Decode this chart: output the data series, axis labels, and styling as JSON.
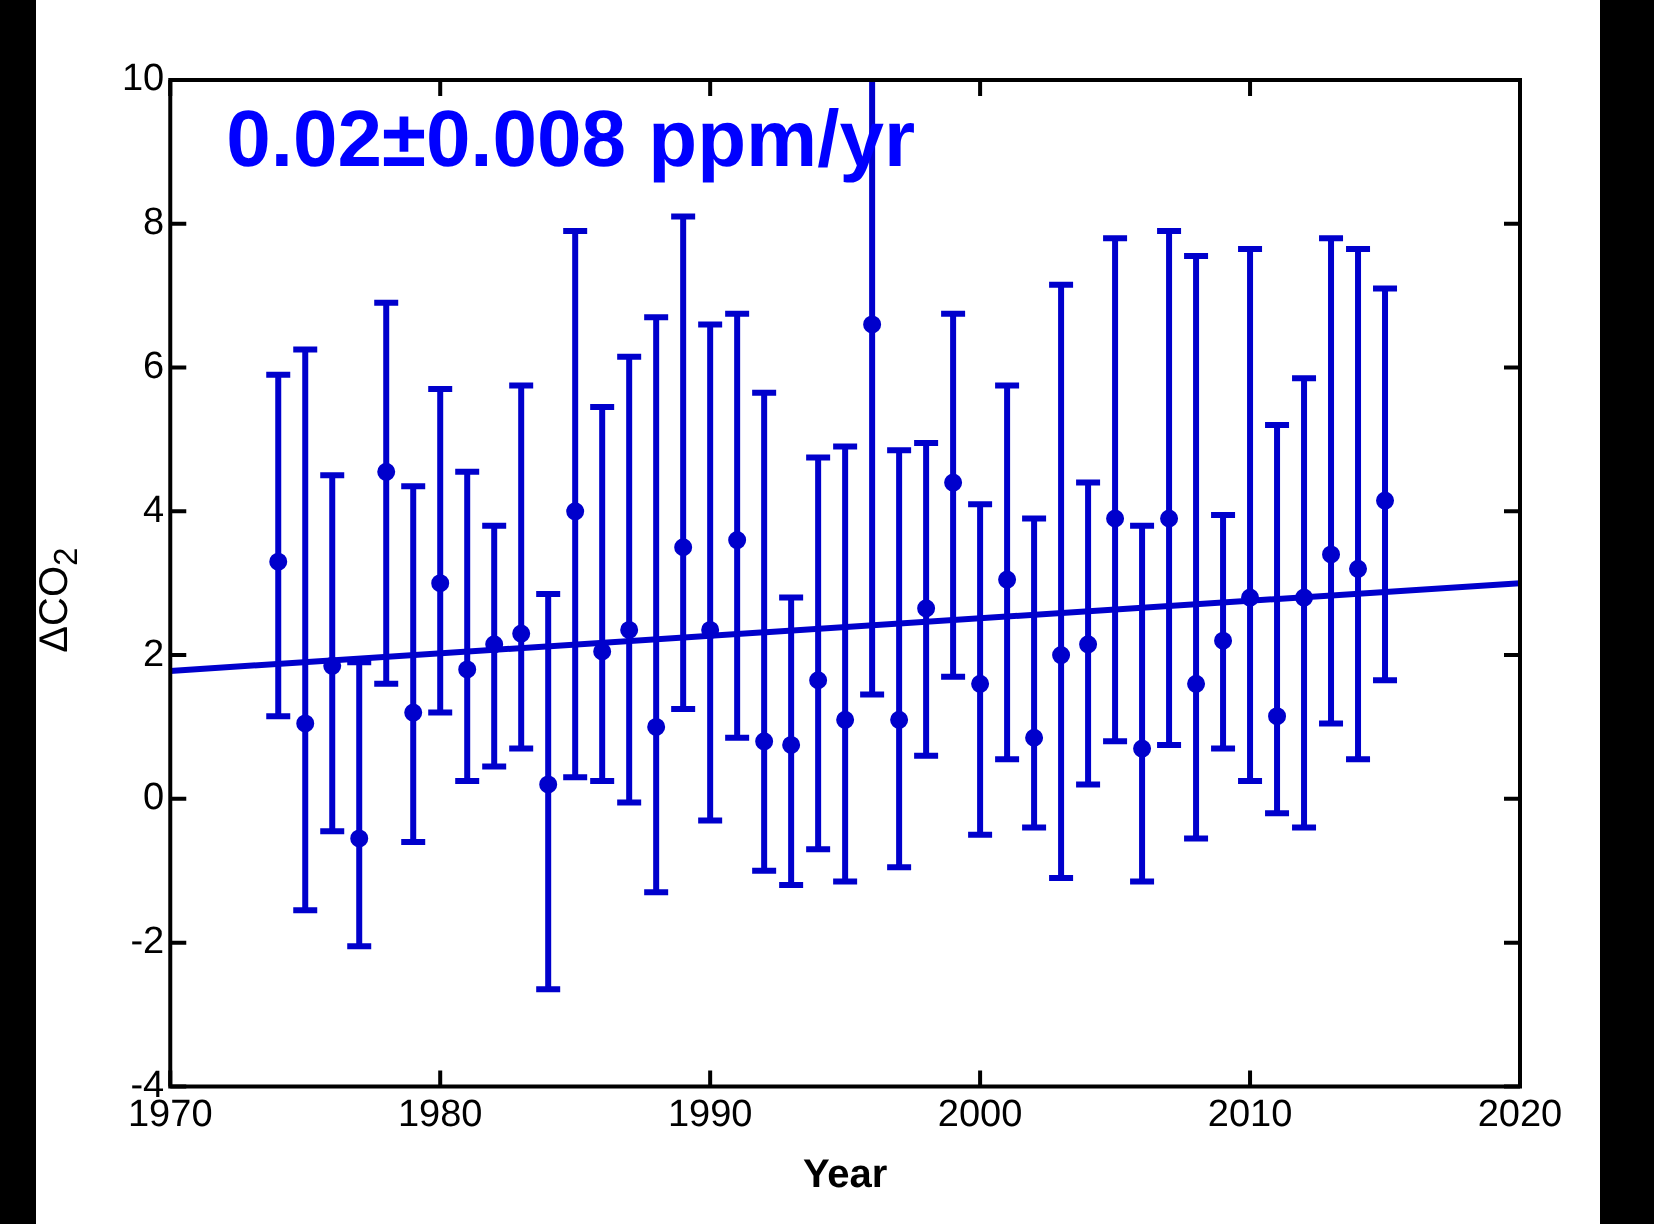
{
  "chart_data": {
    "type": "scatter",
    "xlabel": "Year",
    "ylabel": "ΔCO$_{2}$",
    "annotations": [
      "0.02±0.008 ppm/yr"
    ],
    "xlim": [
      1970,
      2020
    ],
    "xticks": [
      1970,
      1980,
      1990,
      2000,
      2010,
      2020
    ],
    "ylim": [
      -4,
      10
    ],
    "yticks": [
      -4,
      -2,
      0,
      2,
      4,
      6,
      8,
      10
    ],
    "grid": false,
    "legend": false,
    "marker": "circle",
    "series": [
      {
        "color": "#0000cc",
        "x": [
          1974,
          1975,
          1976,
          1977,
          1978,
          1979,
          1980,
          1981,
          1982,
          1983,
          1984,
          1985,
          1986,
          1987,
          1988,
          1989,
          1990,
          1991,
          1992,
          1993,
          1994,
          1995,
          1996,
          1997,
          1998,
          1999,
          2000,
          2001,
          2002,
          2003,
          2004,
          2005,
          2006,
          2007,
          2008,
          2009,
          2010,
          2011,
          2012,
          2013,
          2014,
          2015
        ],
        "values": [
          3.3,
          1.05,
          1.85,
          -0.55,
          4.55,
          1.2,
          3.0,
          1.8,
          2.15,
          2.3,
          0.2,
          4.0,
          2.05,
          2.35,
          1.0,
          3.5,
          2.35,
          3.6,
          0.8,
          0.75,
          1.65,
          1.1,
          6.6,
          1.1,
          2.65,
          4.4,
          1.6,
          3.05,
          0.85,
          2.0,
          2.15,
          3.9,
          0.7,
          3.9,
          1.6,
          2.2,
          2.8,
          1.15,
          2.8,
          3.4,
          3.2,
          4.15
        ],
        "errors": [
          [
            1.15,
            5.9
          ],
          [
            -1.55,
            6.25
          ],
          [
            -0.45,
            4.5
          ],
          [
            -2.05,
            1.9
          ],
          [
            1.6,
            6.9
          ],
          [
            -0.6,
            4.35
          ],
          [
            1.2,
            5.7
          ],
          [
            0.25,
            4.55
          ],
          [
            0.45,
            3.8
          ],
          [
            0.7,
            5.75
          ],
          [
            -2.65,
            2.85
          ],
          [
            0.3,
            7.9
          ],
          [
            0.25,
            5.45
          ],
          [
            -0.05,
            6.15
          ],
          [
            -1.3,
            6.7
          ],
          [
            1.25,
            8.1
          ],
          [
            -0.3,
            6.6
          ],
          [
            0.85,
            6.75
          ],
          [
            -1.0,
            5.65
          ],
          [
            -1.2,
            2.8
          ],
          [
            -0.7,
            4.75
          ],
          [
            -1.15,
            4.9
          ],
          [
            1.45,
            10
          ],
          [
            -0.95,
            4.85
          ],
          [
            0.6,
            4.95
          ],
          [
            1.7,
            6.75
          ],
          [
            -0.5,
            4.1
          ],
          [
            0.55,
            5.75
          ],
          [
            -0.4,
            3.9
          ],
          [
            -1.1,
            7.15
          ],
          [
            0.2,
            4.4
          ],
          [
            0.8,
            7.8
          ],
          [
            -1.15,
            3.8
          ],
          [
            0.75,
            7.9
          ],
          [
            -0.55,
            7.55
          ],
          [
            0.7,
            3.95
          ],
          [
            0.25,
            7.65
          ],
          [
            -0.2,
            5.2
          ],
          [
            -0.4,
            5.85
          ],
          [
            1.05,
            7.8
          ],
          [
            0.55,
            7.65
          ],
          [
            1.65,
            7.1
          ]
        ]
      },
      {
        "type": "line",
        "color": "#0000cc",
        "x": [
          1970,
          2020
        ],
        "values": [
          1.78,
          3.0
        ],
        "marker": "none",
        "line_style": "solid"
      }
    ]
  }
}
